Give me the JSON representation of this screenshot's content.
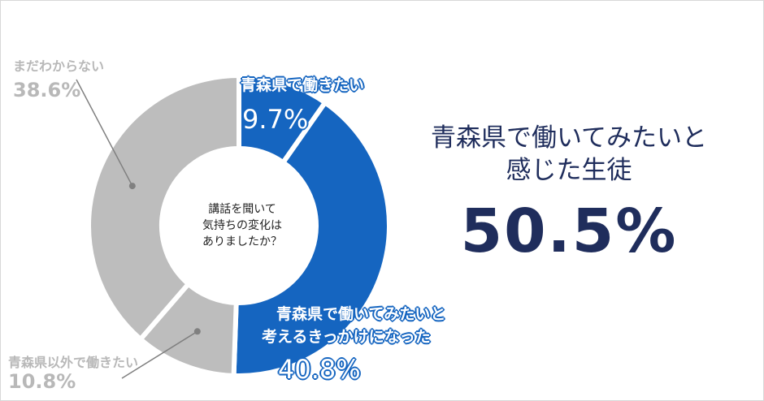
{
  "chart_data": {
    "type": "pie",
    "center_label": "講話を聞いて気持ちの変化はありましたか？",
    "center_lines": [
      "講話を聞いて",
      "気持ちの変化は",
      "ありましたか？"
    ],
    "slices": [
      {
        "label": "青森県で働きたい",
        "value": 9.7,
        "value_label": "9.7%",
        "color": "#1565c0"
      },
      {
        "label": "青森県で働いてみたいと考えるきっかけになった",
        "label_lines": [
          "青森県で働いてみたいと",
          "考えるきっかけになった"
        ],
        "value": 40.8,
        "value_label": "40.8%",
        "color": "#1565c0"
      },
      {
        "label": "青森県以外で働きたい",
        "value": 10.8,
        "value_label": "10.8%",
        "color": "#bdbdbd"
      },
      {
        "label": "まだわからない",
        "value": 38.6,
        "value_label": "38.6%",
        "color": "#bdbdbd"
      }
    ]
  },
  "summary": {
    "lines": [
      "青森県で働いてみたいと",
      "感じた生徒"
    ],
    "value": "50.5%"
  }
}
